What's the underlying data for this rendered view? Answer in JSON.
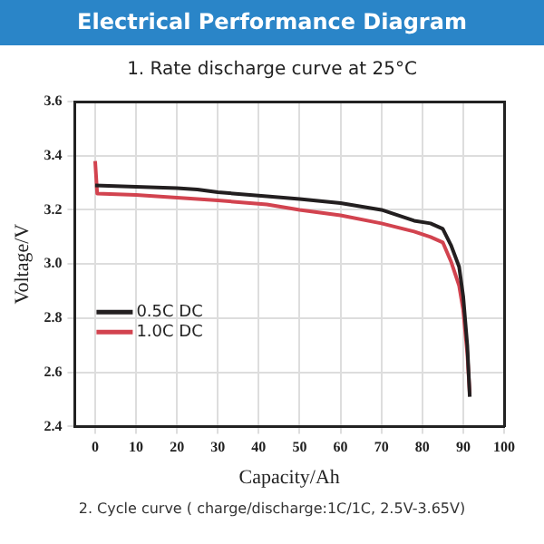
{
  "chart_data": {
    "type": "line",
    "title": "Electrical Performance Diagram",
    "subtitle": "1. Rate discharge curve at 25°C",
    "xlabel": "Capacity/Ah",
    "ylabel": "Voltage/V",
    "xlim": [
      -5,
      100
    ],
    "xticks": [
      0,
      10,
      20,
      30,
      40,
      50,
      60,
      70,
      80,
      90,
      100
    ],
    "ylim": [
      2.4,
      3.6
    ],
    "yticks": [
      2.4,
      2.6,
      2.8,
      {
        "value": 3,
        "label": "3.0"
      },
      3.2,
      3.4,
      3.6
    ],
    "grid": true,
    "legend": "bottom left",
    "marker": "none",
    "line_style": "solid",
    "series": [
      {
        "name": "0.5C DC",
        "color": "#231f20",
        "x": [
          0,
          10,
          20,
          25,
          30,
          42,
          50,
          60,
          70,
          78,
          82,
          85,
          87,
          89,
          90,
          91,
          91.6
        ],
        "values": [
          3.29,
          3.285,
          3.28,
          3.275,
          3.265,
          3.25,
          3.24,
          3.225,
          3.2,
          3.16,
          3.15,
          3.13,
          3.07,
          2.99,
          2.88,
          2.7,
          2.51
        ]
      },
      {
        "name": "1.0C DC",
        "color": "#d2434f",
        "x": [
          0,
          0.5,
          10,
          20,
          30,
          42,
          50,
          60,
          70,
          78,
          82,
          85,
          87,
          89,
          90,
          91,
          91.6
        ],
        "values": [
          3.38,
          3.26,
          3.255,
          3.245,
          3.235,
          3.22,
          3.2,
          3.18,
          3.15,
          3.12,
          3.1,
          3.08,
          3.01,
          2.92,
          2.83,
          2.67,
          2.52
        ]
      }
    ],
    "annotations": [
      "2. Cycle curve ( charge/discharge:1C/1C, 2.5V-3.65V)"
    ]
  }
}
